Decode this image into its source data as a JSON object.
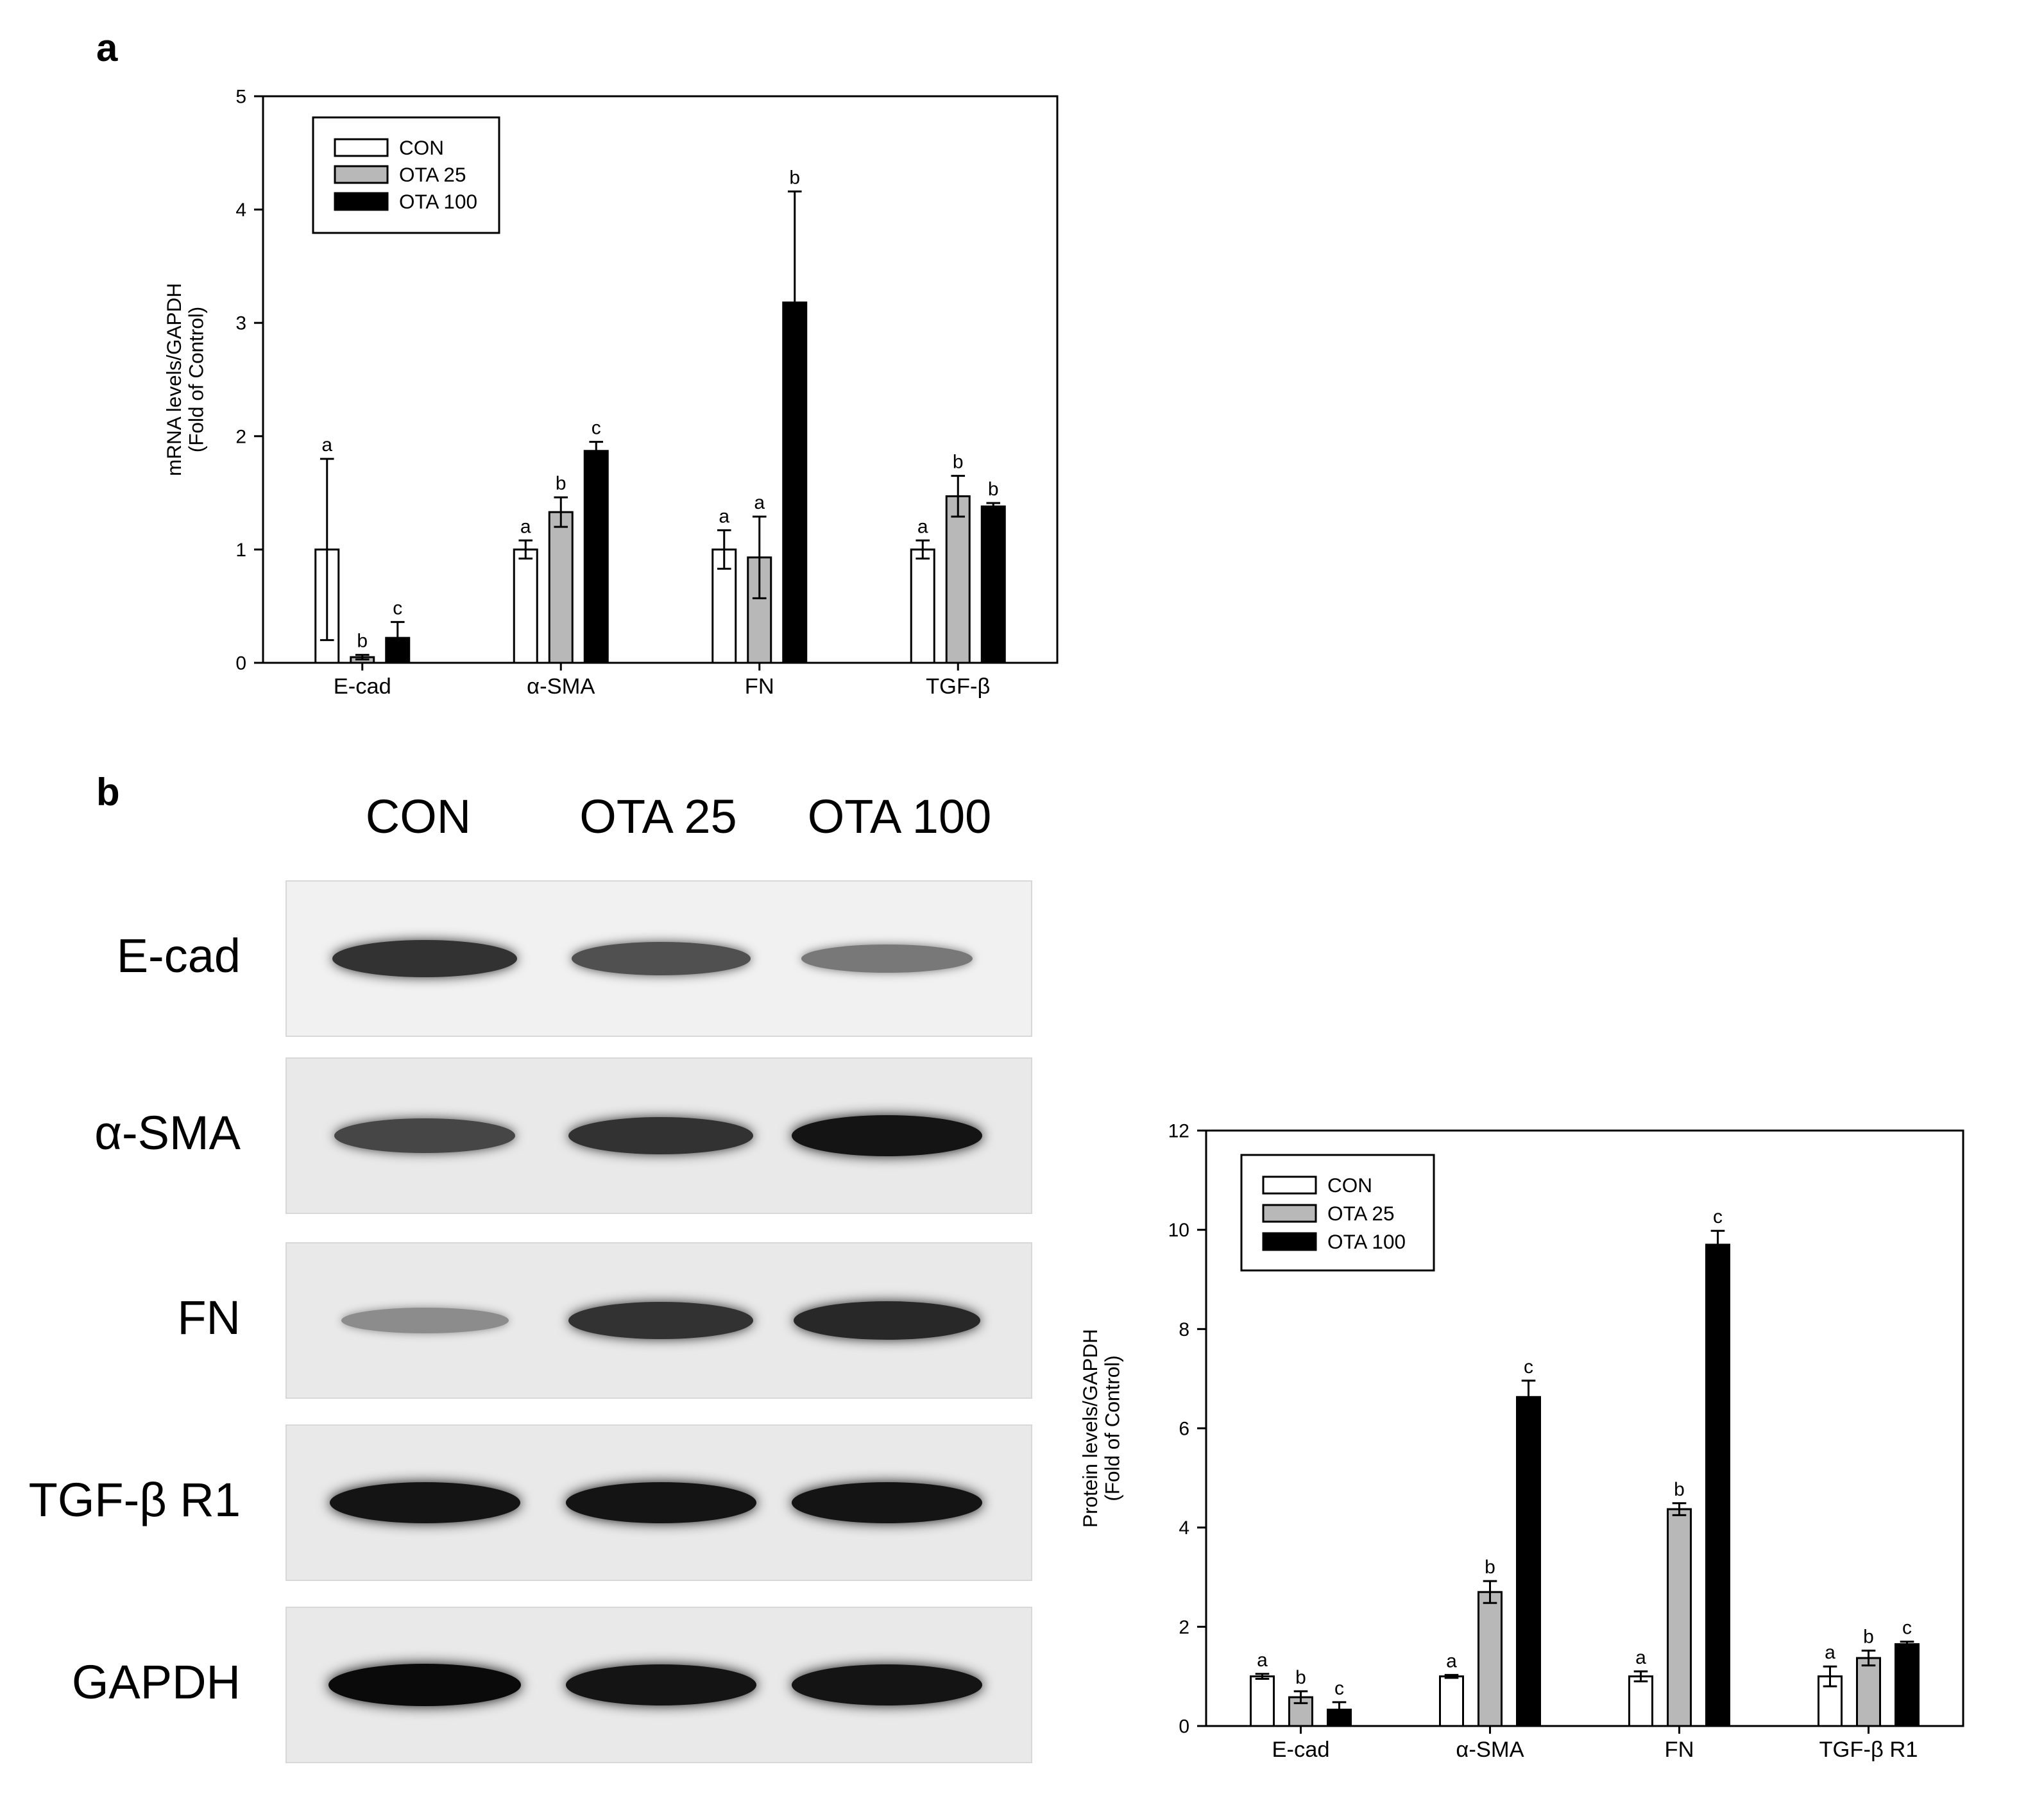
{
  "panel_a": {
    "letter": "a"
  },
  "panel_b": {
    "letter": "b",
    "lanes": [
      "CON",
      "OTA 25",
      "OTA 100"
    ],
    "rows": [
      {
        "label": "E-cad",
        "intensities": [
          0.8,
          0.65,
          0.45
        ]
      },
      {
        "label": "α-SMA",
        "intensities": [
          0.7,
          0.8,
          0.95
        ]
      },
      {
        "label": "FN",
        "intensities": [
          0.35,
          0.8,
          0.85
        ]
      },
      {
        "label": "TGF-β  R1",
        "intensities": [
          0.95,
          0.95,
          0.95
        ]
      },
      {
        "label": "GAPDH",
        "intensities": [
          1.0,
          0.95,
          0.95
        ]
      }
    ]
  },
  "colors": {
    "CON": "#ffffff",
    "OTA 25": "#b8b8b8",
    "OTA 100": "#000000"
  },
  "chart_data": [
    {
      "type": "bar",
      "id": "mrna",
      "ylabel": [
        "mRNA levels/GAPDH",
        "(Fold of Control)"
      ],
      "ylim": [
        0,
        5
      ],
      "yticks": [
        0,
        1,
        2,
        3,
        4,
        5
      ],
      "categories": [
        "E-cad",
        "α-SMA",
        "FN",
        "TGF-β"
      ],
      "series": [
        {
          "name": "CON",
          "values": [
            1.0,
            1.0,
            1.0,
            1.0
          ],
          "errors": [
            0.8,
            0.08,
            0.17,
            0.08
          ],
          "letters": [
            "a",
            "a",
            "a",
            "a"
          ]
        },
        {
          "name": "OTA 25",
          "values": [
            0.05,
            1.33,
            0.93,
            1.47
          ],
          "errors": [
            0.02,
            0.13,
            0.36,
            0.18
          ],
          "letters": [
            "b",
            "b",
            "a",
            "b"
          ]
        },
        {
          "name": "OTA 100",
          "values": [
            0.22,
            1.87,
            3.18,
            1.38
          ],
          "errors": [
            0.14,
            0.08,
            0.98,
            0.03
          ],
          "letters": [
            "c",
            "c",
            "b",
            "b"
          ]
        }
      ],
      "legend_position": "top-left"
    },
    {
      "type": "bar",
      "id": "protein",
      "ylabel": [
        "Protein levels/GAPDH",
        "(Fold of Control)"
      ],
      "ylim": [
        0,
        12
      ],
      "yticks": [
        0,
        2,
        4,
        6,
        8,
        10,
        12
      ],
      "categories": [
        "E-cad",
        "α-SMA",
        "FN",
        "TGF-β  R1"
      ],
      "series": [
        {
          "name": "CON",
          "values": [
            1.0,
            1.0,
            1.0,
            1.0
          ],
          "errors": [
            0.05,
            0.03,
            0.1,
            0.2
          ],
          "letters": [
            "a",
            "a",
            "a",
            "a"
          ]
        },
        {
          "name": "OTA 25",
          "values": [
            0.58,
            2.7,
            4.37,
            1.37
          ],
          "errors": [
            0.12,
            0.22,
            0.12,
            0.15
          ],
          "letters": [
            "b",
            "b",
            "b",
            "b"
          ]
        },
        {
          "name": "OTA 100",
          "values": [
            0.33,
            6.63,
            9.7,
            1.65
          ],
          "errors": [
            0.15,
            0.33,
            0.28,
            0.05
          ],
          "letters": [
            "c",
            "c",
            "c",
            "c"
          ]
        }
      ],
      "legend_position": "top-left"
    }
  ]
}
